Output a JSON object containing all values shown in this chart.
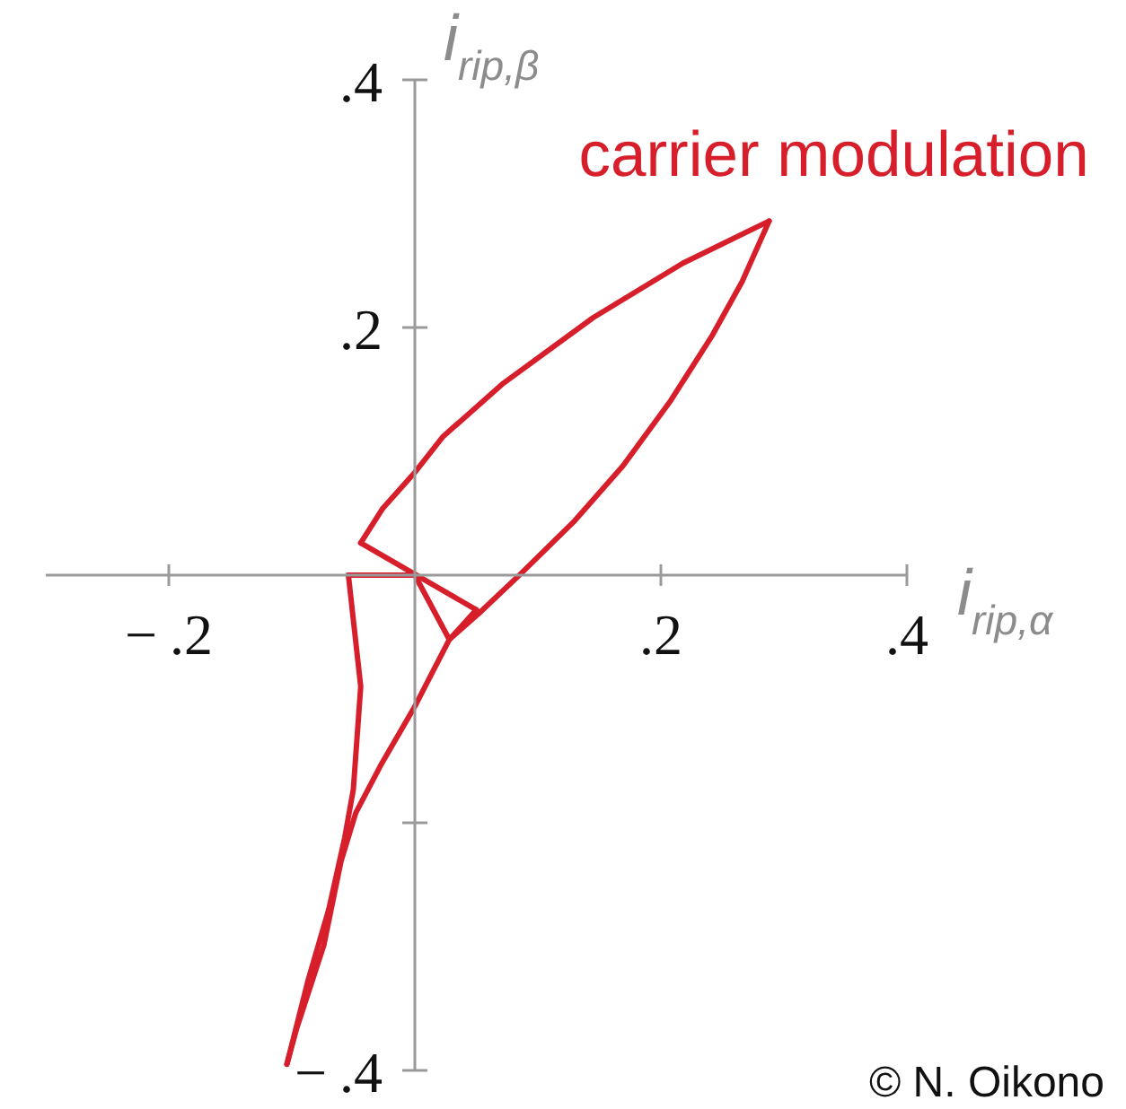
{
  "chart_data": {
    "type": "line",
    "series": [
      {
        "name": "carrier modulation",
        "color": "#d71f2c",
        "x": [
          0.288,
          0.218,
          0.145,
          0.072,
          0.023,
          0,
          -0.026,
          -0.044
        ],
        "values": [
          0.286,
          0.252,
          0.208,
          0.155,
          0.112,
          0.083,
          0.054,
          0.026
        ]
      },
      {
        "color": "#d71f2c",
        "x": [
          -0.044,
          0.05
        ],
        "values": [
          0.026,
          -0.028
        ]
      },
      {
        "color": "#d71f2c",
        "x": [
          0.05,
          0.028,
          0,
          -0.054
        ],
        "values": [
          -0.028,
          -0.052,
          0,
          0
        ]
      },
      {
        "color": "#d71f2c",
        "x": [
          -0.054,
          -0.044,
          -0.05,
          -0.057,
          -0.07,
          -0.087,
          -0.104
        ],
        "values": [
          0,
          -0.09,
          -0.173,
          -0.212,
          -0.27,
          -0.328,
          -0.395
        ]
      },
      {
        "color": "#d71f2c",
        "x": [
          -0.104,
          -0.096,
          -0.074,
          -0.06,
          -0.048,
          -0.028,
          0,
          0.028,
          0.052,
          0.086,
          0.13,
          0.169,
          0.208,
          0.242,
          0.266,
          0.288
        ],
        "values": [
          -0.395,
          -0.366,
          -0.299,
          -0.231,
          -0.192,
          -0.154,
          -0.106,
          -0.052,
          -0.031,
          0.001,
          0.044,
          0.088,
          0.141,
          0.194,
          0.237,
          0.286
        ]
      }
    ],
    "xlabel": "i$_{rip,α}$",
    "ylabel": "i$_{rip,β}$",
    "xlim": [
      -0.3,
      0.4
    ],
    "ylim": [
      -0.4,
      0.4
    ],
    "xticks": [
      {
        "value": -0.2,
        "label": "−.2"
      },
      {
        "value": 0.2,
        "label": ".2"
      },
      {
        "value": 0.4,
        "label": ".4"
      }
    ],
    "yticks": [
      {
        "value": -0.4,
        "label": "−.4"
      },
      {
        "value": -0.2,
        "label": null
      },
      {
        "value": 0.2,
        "label": ".2"
      },
      {
        "value": 0.4,
        "label": ".4"
      }
    ],
    "marker": "none",
    "line_style": "solid",
    "annotations": [
      "© N. Oikono"
    ]
  }
}
